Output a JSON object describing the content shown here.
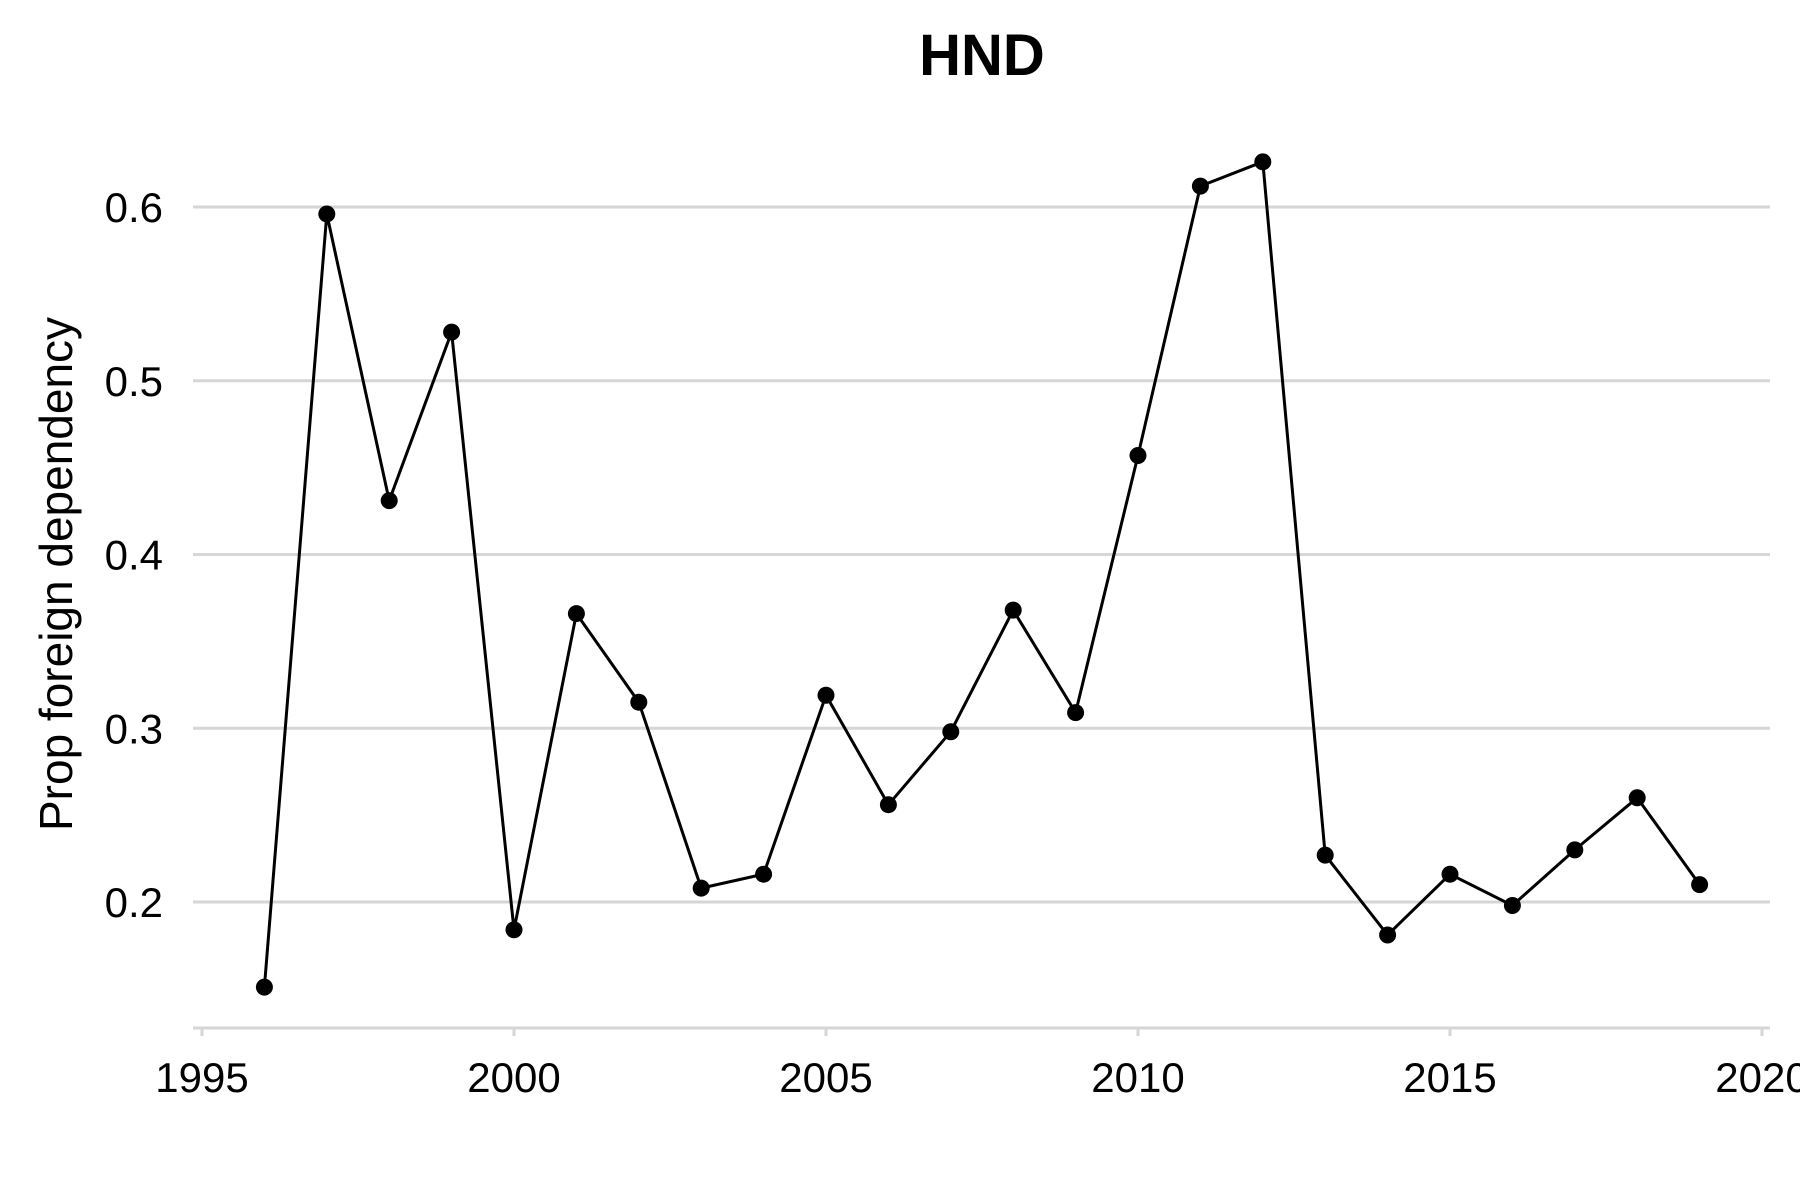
{
  "chart_data": {
    "type": "line",
    "title": "HND",
    "xlabel": "",
    "ylabel": "Prop foreign dependency",
    "xlim": [
      1995,
      2020
    ],
    "ylim": [
      0.15,
      0.6
    ],
    "x_ticks": [
      1995,
      2000,
      2005,
      2010,
      2015,
      2020
    ],
    "y_ticks": [
      0.2,
      0.3,
      0.4,
      0.5,
      0.6
    ],
    "grid": "horizontal",
    "legend": "none",
    "colors": {
      "line": "#000000",
      "grid": "#d6d6d6"
    },
    "series": [
      {
        "x": [
          1996,
          1997,
          1998,
          1999,
          2000,
          2001,
          2002,
          2003,
          2004,
          2005,
          2006,
          2007,
          2008,
          2009,
          2010,
          2011,
          2012,
          2013,
          2014,
          2015,
          2016,
          2017,
          2018,
          2019
        ],
        "values": [
          0.151,
          0.596,
          0.431,
          0.528,
          0.184,
          0.366,
          0.315,
          0.208,
          0.216,
          0.319,
          0.256,
          0.298,
          0.368,
          0.309,
          0.457,
          0.612,
          0.626,
          0.227,
          0.181,
          0.216,
          0.198,
          0.23,
          0.26,
          0.21
        ]
      }
    ]
  }
}
